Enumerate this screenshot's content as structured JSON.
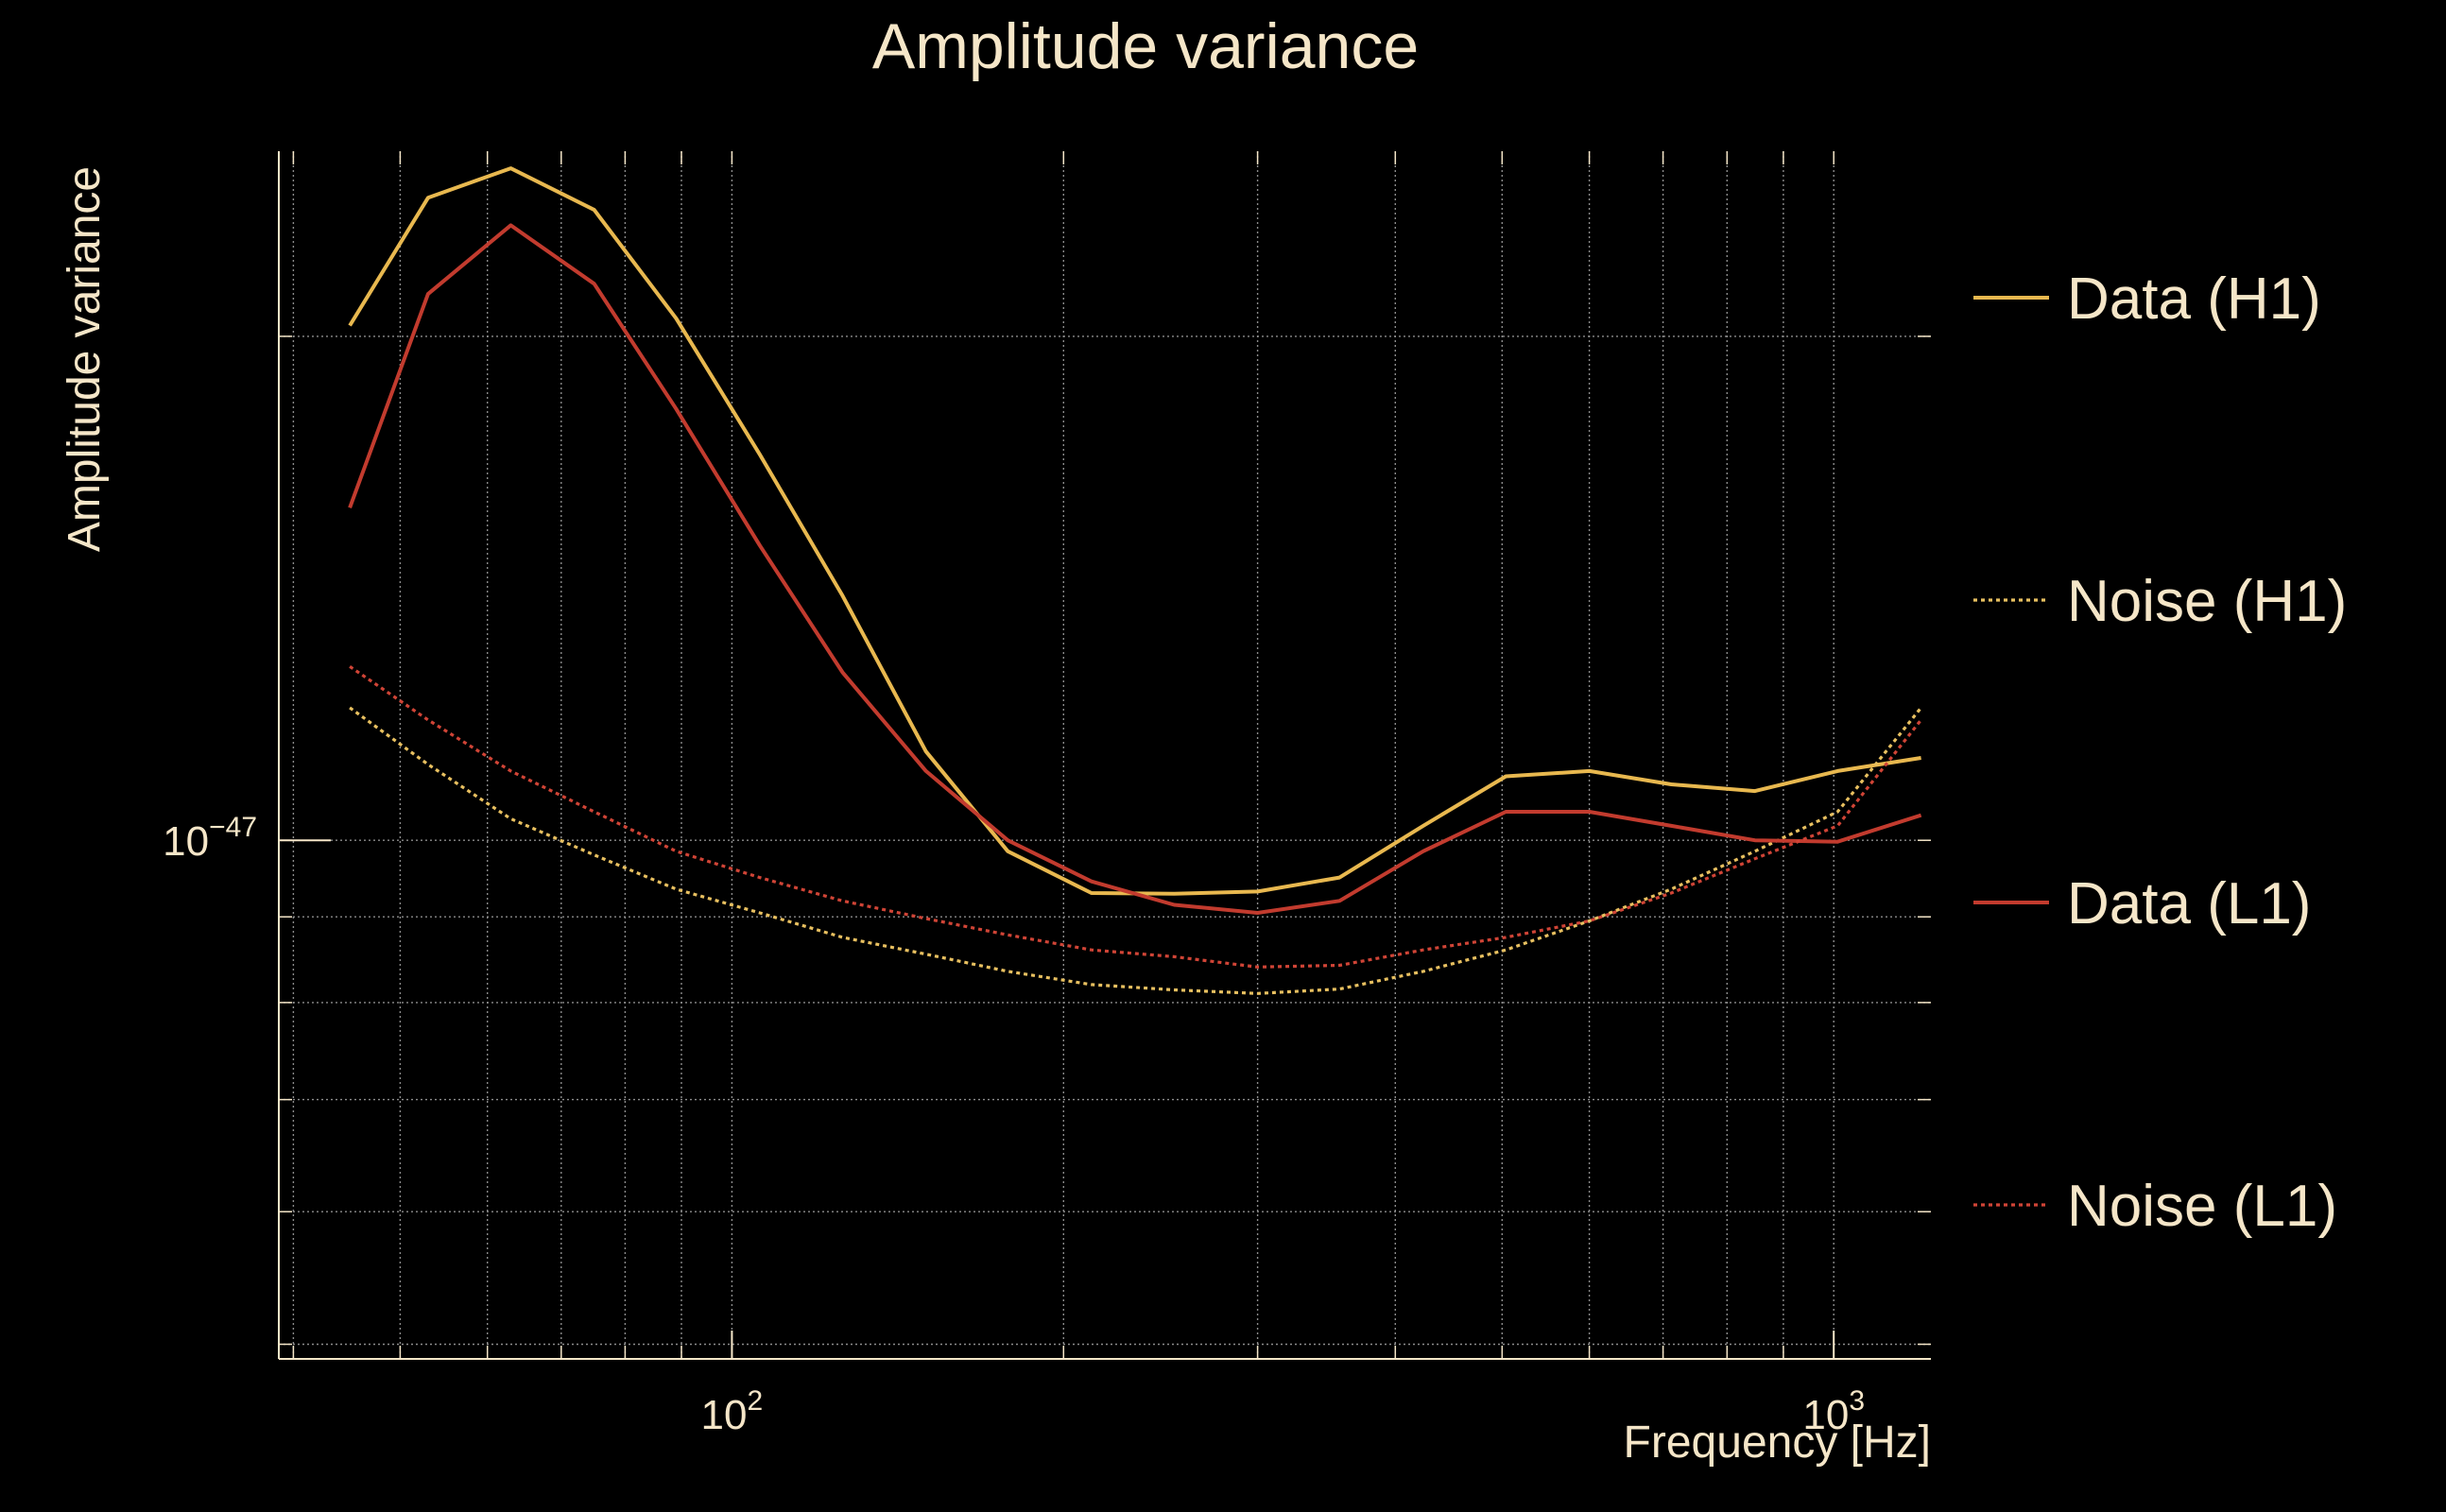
{
  "chart_data": {
    "type": "line",
    "title": "Amplitude variance",
    "xlabel": "Frequency [Hz]",
    "ylabel": "Amplitude variance",
    "x_scale": "log",
    "y_scale": "log",
    "xlim": [
      38.8,
      1225
    ],
    "ylim": [
      4.9e-48,
      2.58e-47
    ],
    "x_ticks": [
      {
        "value": 100,
        "base": "10",
        "exp": "2"
      },
      {
        "value": 1000,
        "base": "10",
        "exp": "3"
      }
    ],
    "y_ticks": [
      {
        "value": 1e-47,
        "base": "10",
        "exp": "−47"
      }
    ],
    "grid": true,
    "background": "#000000",
    "text_color": "#f5e6c8",
    "grid_color": "#8c8c8c",
    "legend_position": "right",
    "x": [
      45,
      53,
      63,
      75,
      89,
      106,
      126,
      150,
      178,
      212,
      252,
      300,
      356,
      424,
      504,
      600,
      712,
      848,
      1008,
      1200
    ],
    "series": [
      {
        "name": "Data (H1)",
        "color": "#e8b84f",
        "style": "solid",
        "values": [
          2.03e-47,
          2.42e-47,
          2.52e-47,
          2.38e-47,
          2.05e-47,
          1.7e-47,
          1.4e-47,
          1.13e-47,
          9.85e-48,
          9.3e-48,
          9.29e-48,
          9.32e-48,
          9.5e-48,
          1.02e-47,
          1.092e-47,
          1.1e-47,
          1.08e-47,
          1.07e-47,
          1.1e-47,
          1.12e-47
        ]
      },
      {
        "name": "Noise (H1)",
        "color": "#e8c060",
        "style": "dotted",
        "values": [
          1.2e-47,
          1.11e-47,
          1.03e-47,
          9.8e-48,
          9.35e-48,
          9.05e-48,
          8.75e-48,
          8.55e-48,
          8.35e-48,
          8.2e-48,
          8.14e-48,
          8.1e-48,
          8.15e-48,
          8.35e-48,
          8.6e-48,
          8.95e-48,
          9.35e-48,
          9.85e-48,
          1.04e-47,
          1.2e-47
        ]
      },
      {
        "name": "Data (L1)",
        "color": "#c23b2e",
        "style": "solid",
        "values": [
          1.58e-47,
          2.12e-47,
          2.33e-47,
          2.15e-47,
          1.81e-47,
          1.5e-47,
          1.26e-47,
          1.1e-47,
          1e-47,
          9.45e-48,
          9.15e-48,
          9.05e-48,
          9.2e-48,
          9.85e-48,
          1.04e-47,
          1.04e-47,
          1.02e-47,
          1e-47,
          9.98e-48,
          1.035e-47
        ]
      },
      {
        "name": "Noise (L1)",
        "color": "#d04436",
        "style": "dotted",
        "values": [
          1.27e-47,
          1.18e-47,
          1.1e-47,
          1.04e-47,
          9.85e-48,
          9.5e-48,
          9.2e-48,
          8.98e-48,
          8.78e-48,
          8.6e-48,
          8.52e-48,
          8.4e-48,
          8.42e-48,
          8.6e-48,
          8.75e-48,
          8.95e-48,
          9.3e-48,
          9.75e-48,
          1.02e-47,
          1.18e-47
        ]
      }
    ]
  }
}
